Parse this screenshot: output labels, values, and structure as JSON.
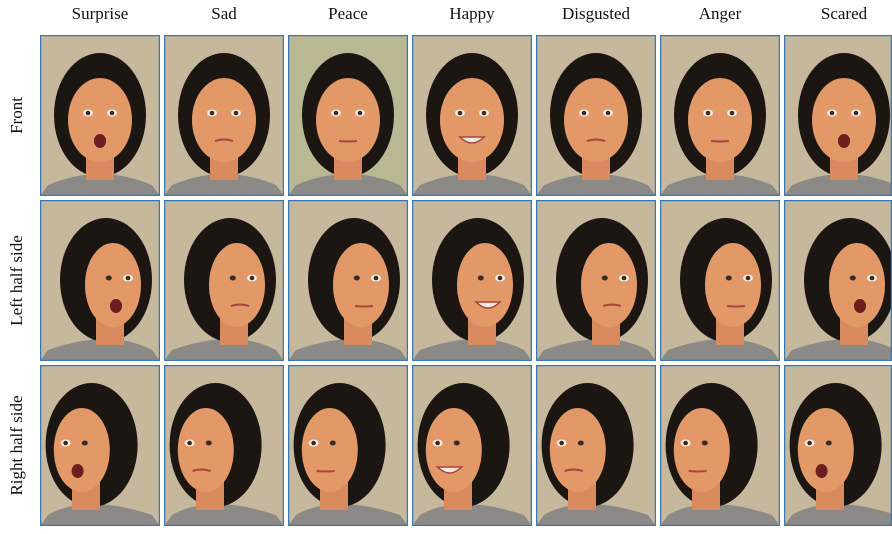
{
  "columns": [
    "Surprise",
    "Sad",
    "Peace",
    "Happy",
    "Disgusted",
    "Anger",
    "Scared"
  ],
  "rows": [
    "Front",
    "Left half side",
    "Right half side"
  ]
}
